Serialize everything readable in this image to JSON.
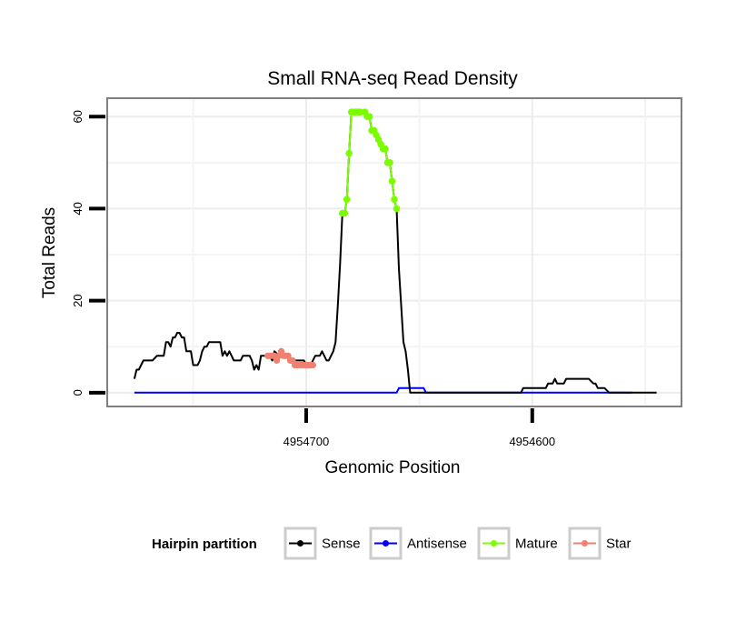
{
  "chart_data": {
    "type": "line",
    "title": "Small RNA-seq Read Density",
    "xlabel": "Genomic Position",
    "ylabel": "Total Reads",
    "xlim": [
      4954788,
      4954534
    ],
    "ylim": [
      -3,
      64
    ],
    "x_reversed": true,
    "x_ticks": [
      4954700,
      4954600
    ],
    "x_tick_labels": [
      "4954700",
      "4954600"
    ],
    "y_ticks": [
      0,
      20,
      40,
      60
    ],
    "y_tick_labels": [
      "0",
      "20",
      "40",
      "60"
    ],
    "grid": true,
    "legend": {
      "title": "Hairpin partition",
      "position": "bottom",
      "entries": [
        {
          "label": "Sense",
          "color": "#000000"
        },
        {
          "label": "Antisense",
          "color": "#0000ff"
        },
        {
          "label": "Mature",
          "color": "#7cfc00"
        },
        {
          "label": "Star",
          "color": "#f08070"
        }
      ]
    },
    "series": [
      {
        "name": "Sense",
        "color": "#000000",
        "points": [
          [
            4954776,
            3
          ],
          [
            4954775,
            5
          ],
          [
            4954774,
            5
          ],
          [
            4954773,
            6
          ],
          [
            4954772,
            7
          ],
          [
            4954769,
            7
          ],
          [
            4954768,
            7
          ],
          [
            4954766,
            8
          ],
          [
            4954763,
            8
          ],
          [
            4954762,
            11
          ],
          [
            4954761,
            11
          ],
          [
            4954760,
            10
          ],
          [
            4954759,
            12
          ],
          [
            4954758,
            12
          ],
          [
            4954757,
            13
          ],
          [
            4954756,
            13
          ],
          [
            4954755,
            12
          ],
          [
            4954754,
            12
          ],
          [
            4954753,
            9
          ],
          [
            4954752,
            9
          ],
          [
            4954751,
            9
          ],
          [
            4954750,
            6
          ],
          [
            4954748,
            6
          ],
          [
            4954747,
            7
          ],
          [
            4954746,
            9
          ],
          [
            4954745,
            10
          ],
          [
            4954744,
            10
          ],
          [
            4954743,
            11
          ],
          [
            4954741,
            11
          ],
          [
            4954740,
            11
          ],
          [
            4954738,
            11
          ],
          [
            4954737,
            8
          ],
          [
            4954736,
            9
          ],
          [
            4954735,
            8
          ],
          [
            4954734,
            9
          ],
          [
            4954733,
            8
          ],
          [
            4954732,
            7
          ],
          [
            4954729,
            7
          ],
          [
            4954728,
            8
          ],
          [
            4954725,
            8
          ],
          [
            4954724,
            7
          ],
          [
            4954723,
            5
          ],
          [
            4954722,
            6
          ],
          [
            4954721,
            5
          ],
          [
            4954720,
            8
          ],
          [
            4954716,
            8
          ],
          [
            4954715,
            7
          ],
          [
            4954714,
            9
          ],
          [
            4954712,
            8
          ],
          [
            4954711,
            9
          ],
          [
            4954709,
            8
          ],
          [
            4954707,
            7
          ],
          [
            4954706,
            7
          ],
          [
            4954704,
            7
          ],
          [
            4954701,
            7
          ],
          [
            4954700,
            6
          ],
          [
            4954698,
            6
          ],
          [
            4954696,
            8
          ],
          [
            4954694,
            8
          ],
          [
            4954693,
            9
          ],
          [
            4954692,
            8
          ],
          [
            4954691,
            7
          ],
          [
            4954690,
            7
          ],
          [
            4954689,
            8
          ],
          [
            4954688,
            9
          ],
          [
            4954687,
            11
          ],
          [
            4954686,
            19
          ],
          [
            4954685,
            28
          ],
          [
            4954684,
            39
          ],
          [
            4954683,
            39
          ],
          [
            4954682,
            42
          ],
          [
            4954681,
            52
          ],
          [
            4954680,
            61
          ],
          [
            4954679,
            61
          ],
          [
            4954678,
            61
          ],
          [
            4954677,
            61
          ],
          [
            4954676,
            61
          ],
          [
            4954674,
            61
          ],
          [
            4954673,
            60
          ],
          [
            4954672,
            60
          ],
          [
            4954671,
            57
          ],
          [
            4954670,
            57
          ],
          [
            4954669,
            56
          ],
          [
            4954668,
            55
          ],
          [
            4954667,
            54
          ],
          [
            4954666,
            53
          ],
          [
            4954665,
            53
          ],
          [
            4954664,
            50
          ],
          [
            4954663,
            50
          ],
          [
            4954662,
            46
          ],
          [
            4954661,
            42
          ],
          [
            4954660,
            40
          ],
          [
            4954659,
            27
          ],
          [
            4954658,
            19
          ],
          [
            4954657,
            11
          ],
          [
            4954656,
            9
          ],
          [
            4954655,
            5
          ],
          [
            4954654,
            0
          ],
          [
            4954650,
            0
          ],
          [
            4954640,
            0
          ],
          [
            4954620,
            0
          ],
          [
            4954605,
            0
          ],
          [
            4954604,
            1
          ],
          [
            4954596,
            1
          ],
          [
            4954595,
            1
          ],
          [
            4954594,
            1
          ],
          [
            4954593,
            2
          ],
          [
            4954591,
            2
          ],
          [
            4954590,
            3
          ],
          [
            4954589,
            2
          ],
          [
            4954588,
            2
          ],
          [
            4954587,
            2
          ],
          [
            4954586,
            2
          ],
          [
            4954585,
            3
          ],
          [
            4954576,
            3
          ],
          [
            4954575,
            3
          ],
          [
            4954573,
            2
          ],
          [
            4954572,
            2
          ],
          [
            4954571,
            1
          ],
          [
            4954568,
            1
          ],
          [
            4954566,
            0
          ],
          [
            4954555,
            0
          ],
          [
            4954550,
            0
          ],
          [
            4954545,
            0
          ]
        ]
      },
      {
        "name": "Antisense",
        "color": "#0000ff",
        "points": [
          [
            4954776,
            0
          ],
          [
            4954660,
            0
          ],
          [
            4954659,
            1
          ],
          [
            4954648,
            1
          ],
          [
            4954647,
            0
          ],
          [
            4954556,
            0
          ]
        ]
      },
      {
        "name": "Mature",
        "color": "#7cfc00",
        "points": [
          [
            4954684,
            39
          ],
          [
            4954683,
            39
          ],
          [
            4954682,
            42
          ],
          [
            4954681,
            52
          ],
          [
            4954680,
            61
          ],
          [
            4954679,
            61
          ],
          [
            4954678,
            61
          ],
          [
            4954677,
            61
          ],
          [
            4954676,
            61
          ],
          [
            4954674,
            61
          ],
          [
            4954673,
            60
          ],
          [
            4954672,
            60
          ],
          [
            4954671,
            57
          ],
          [
            4954670,
            57
          ],
          [
            4954669,
            56
          ],
          [
            4954668,
            55
          ],
          [
            4954667,
            54
          ],
          [
            4954666,
            53
          ],
          [
            4954665,
            53
          ],
          [
            4954664,
            50
          ],
          [
            4954663,
            50
          ],
          [
            4954662,
            46
          ],
          [
            4954661,
            42
          ],
          [
            4954660,
            40
          ]
        ]
      },
      {
        "name": "Star",
        "color": "#f08070",
        "points": [
          [
            4954717,
            8
          ],
          [
            4954716,
            8
          ],
          [
            4954715,
            8
          ],
          [
            4954714,
            8
          ],
          [
            4954713,
            7
          ],
          [
            4954712,
            8
          ],
          [
            4954711,
            9
          ],
          [
            4954710,
            8
          ],
          [
            4954709,
            8
          ],
          [
            4954708,
            8
          ],
          [
            4954707,
            7
          ],
          [
            4954706,
            7
          ],
          [
            4954705,
            6
          ],
          [
            4954704,
            6
          ],
          [
            4954703,
            6
          ],
          [
            4954702,
            6
          ],
          [
            4954701,
            6
          ],
          [
            4954700,
            6
          ],
          [
            4954699,
            6
          ],
          [
            4954698,
            6
          ],
          [
            4954697,
            6
          ]
        ]
      }
    ]
  }
}
